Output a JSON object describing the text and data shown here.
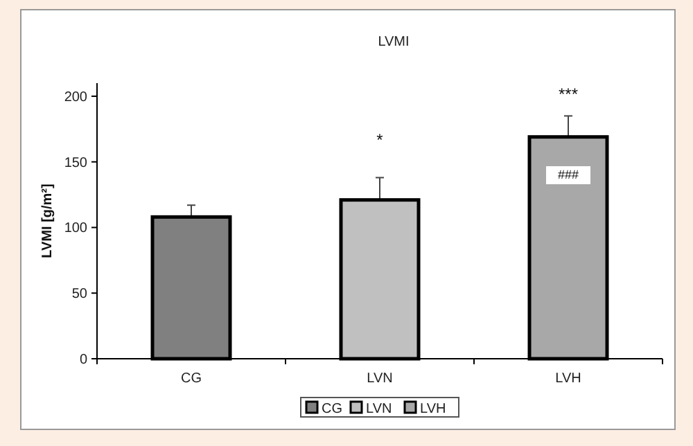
{
  "chart_data": {
    "type": "bar",
    "title": "LVMI",
    "ylabel": "LVMI [g/m²]",
    "categories": [
      "CG",
      "LVN",
      "LVH"
    ],
    "series": [
      {
        "name": "CG",
        "color": "#808080",
        "values": [
          108,
          null,
          null
        ],
        "errors": [
          9,
          null,
          null
        ]
      },
      {
        "name": "LVN",
        "color": "#c0c0c0",
        "values": [
          null,
          121,
          null
        ],
        "errors": [
          null,
          17,
          null
        ]
      },
      {
        "name": "LVH",
        "color": "#a8a8a8",
        "values": [
          null,
          null,
          169
        ],
        "errors": [
          null,
          null,
          16
        ]
      }
    ],
    "ylim": [
      0,
      210
    ],
    "yticks": [
      0,
      50,
      100,
      150,
      200
    ],
    "grid": false,
    "legend": "bottom",
    "annotations": [
      "*",
      "***",
      "###"
    ]
  }
}
